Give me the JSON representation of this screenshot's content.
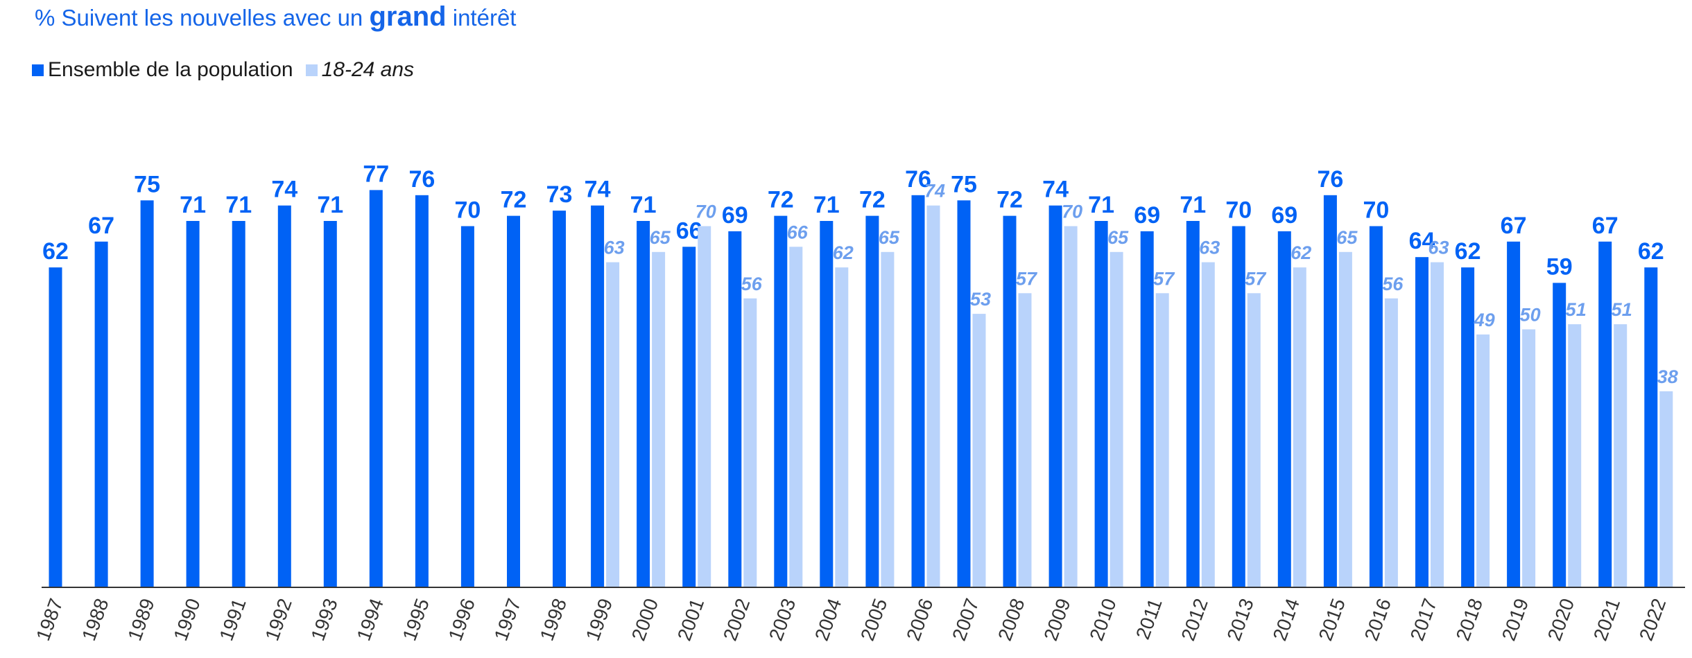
{
  "title": {
    "prefix": "% Suivent les nouvelles avec un ",
    "emphasis": "grand",
    "suffix": " intérêt"
  },
  "colors": {
    "series_all": "#0062f5",
    "series_young": "#b9d3fb",
    "label_all": "#0062f5",
    "label_young": "#6d9fee",
    "axis": "#333333"
  },
  "chart_data": {
    "type": "bar",
    "title": "% Suivent les nouvelles avec un grand intérêt",
    "xlabel": "",
    "ylabel": "",
    "ylim": [
      0,
      77
    ],
    "grid": false,
    "legend_position": "top-left",
    "categories": [
      "1987",
      "1988",
      "1989",
      "1990",
      "1991",
      "1992",
      "1993",
      "1994",
      "1995",
      "1996",
      "1997",
      "1998",
      "1999",
      "2000",
      "2001",
      "2002",
      "2003",
      "2004",
      "2005",
      "2006",
      "2007",
      "2008",
      "2009",
      "2010",
      "2011",
      "2012",
      "2013",
      "2014",
      "2015",
      "2016",
      "2017",
      "2018",
      "2019",
      "2020",
      "2021",
      "2022"
    ],
    "series": [
      {
        "name": "Ensemble de la population",
        "values": [
          62,
          67,
          75,
          71,
          71,
          74,
          71,
          77,
          76,
          70,
          72,
          73,
          74,
          71,
          66,
          69,
          72,
          71,
          72,
          76,
          75,
          72,
          74,
          71,
          69,
          71,
          70,
          69,
          76,
          70,
          64,
          62,
          67,
          59,
          67,
          62
        ]
      },
      {
        "name": "18-24 ans",
        "values": [
          null,
          null,
          null,
          null,
          null,
          null,
          null,
          null,
          null,
          null,
          null,
          null,
          63,
          65,
          70,
          56,
          66,
          62,
          65,
          74,
          53,
          57,
          70,
          65,
          57,
          63,
          57,
          62,
          65,
          56,
          63,
          49,
          50,
          51,
          51,
          38
        ]
      }
    ]
  }
}
